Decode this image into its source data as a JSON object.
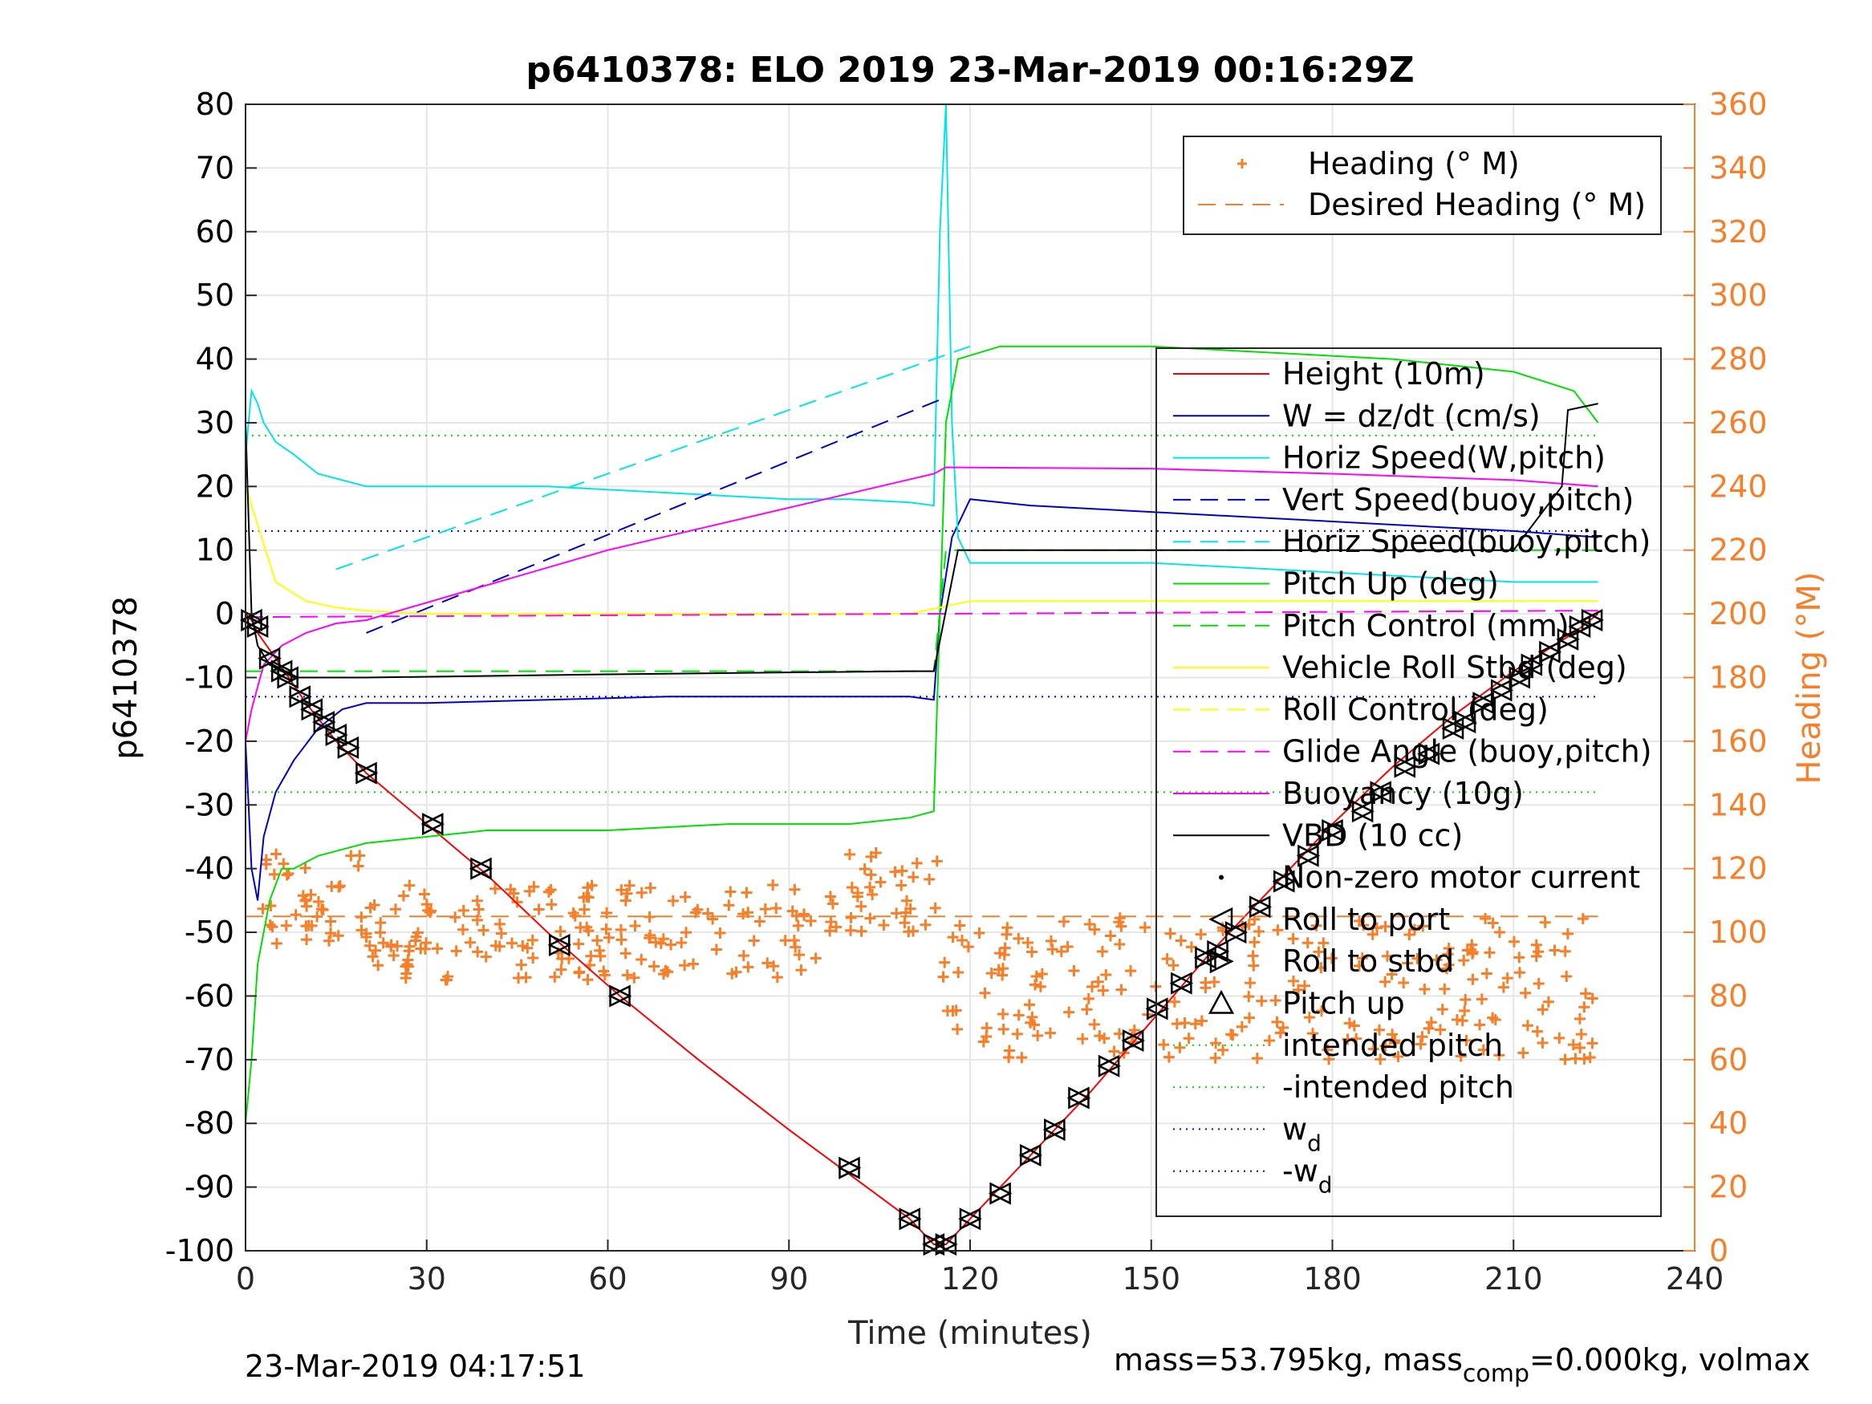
{
  "chart_data": {
    "type": "line",
    "title": "p6410378: ELO 2019 23-Mar-2019 00:16:29Z",
    "xlabel": "Time (minutes)",
    "ylabel_left": "p6410378",
    "ylabel_right": "Heading (°M)",
    "xlim": [
      0,
      240
    ],
    "ylim_left": [
      -100,
      80
    ],
    "ylim_right": [
      0,
      360
    ],
    "x_ticks": [
      "0",
      "30",
      "60",
      "90",
      "120",
      "150",
      "180",
      "210",
      "240"
    ],
    "y_ticks_left": [
      "80",
      "70",
      "60",
      "50",
      "40",
      "30",
      "20",
      "10",
      "0",
      "-10",
      "-20",
      "-30",
      "-40",
      "-50",
      "-60",
      "-70",
      "-80",
      "-90",
      "-100"
    ],
    "y_ticks_right": [
      "360",
      "340",
      "320",
      "300",
      "280",
      "260",
      "240",
      "220",
      "200",
      "180",
      "160",
      "140",
      "120",
      "100",
      "80",
      "60",
      "40",
      "20",
      "0"
    ],
    "grid": true,
    "colors": {
      "heading": "#f77f2a",
      "height": "#ff0000",
      "w": "#0000cc",
      "horiz": "#00e6e6",
      "pitch": "#00e000",
      "roll": "#ffff00",
      "glide": "#ff00ff",
      "vbd": "#000000",
      "wd": "#0000ff",
      "intended_pitch": "#00dd00"
    },
    "legend_heading": [
      {
        "label": "Heading (° M)",
        "style": "plus",
        "color": "#f77f2a"
      },
      {
        "label": "Desired Heading (° M)",
        "style": "dash",
        "color": "#f77f2a"
      }
    ],
    "legend_main": [
      {
        "label": "Height (10m)",
        "style": "solid",
        "color": "#ff0000"
      },
      {
        "label": "W = dz/dt (cm/s)",
        "style": "solid",
        "color": "#0000cc"
      },
      {
        "label": "Horiz Speed(W,pitch)",
        "style": "solid",
        "color": "#00e6e6"
      },
      {
        "label": "Vert Speed(buoy,pitch)",
        "style": "dash",
        "color": "#0000cc"
      },
      {
        "label": "Horiz Speed(buoy,pitch)",
        "style": "dash",
        "color": "#00e6e6"
      },
      {
        "label": "Pitch Up (deg)",
        "style": "solid",
        "color": "#00e000"
      },
      {
        "label": "Pitch Control (mm)",
        "style": "dash",
        "color": "#00e000"
      },
      {
        "label": "Vehicle Roll Stbd (deg)",
        "style": "solid",
        "color": "#ffff00"
      },
      {
        "label": "Roll Control (deg)",
        "style": "dash",
        "color": "#ffff00"
      },
      {
        "label": "Glide Angle (buoy,pitch)",
        "style": "dash",
        "color": "#ff00ff"
      },
      {
        "label": "Buoyancy (10g)",
        "style": "solid",
        "color": "#ff00ff"
      },
      {
        "label": "VBD (10 cc)",
        "style": "solid",
        "color": "#000000"
      },
      {
        "label": "Non-zero motor current",
        "style": "dot",
        "color": "#000000"
      },
      {
        "label": "Roll to port",
        "style": "triangle-left",
        "color": "#000000"
      },
      {
        "label": "Roll to stbd",
        "style": "triangle-right",
        "color": "#000000"
      },
      {
        "label": "Pitch up",
        "style": "triangle-up",
        "color": "#000000"
      },
      {
        "label": "intended pitch",
        "style": "dotted",
        "color": "#00dd00"
      },
      {
        "label": "-intended pitch",
        "style": "dotted",
        "color": "#00dd00"
      },
      {
        "label": "w",
        "sub": "d",
        "style": "dotted",
        "color": "#0000ff"
      },
      {
        "label": "-w",
        "sub": "d",
        "style": "dotted",
        "color": "#0000ff"
      }
    ],
    "series": [
      {
        "name": "Height (10m)",
        "color": "#ff0000",
        "x": [
          0,
          1,
          2,
          5,
          10,
          15,
          20,
          30,
          40,
          50,
          62,
          75,
          90,
          100,
          110,
          114,
          116,
          120,
          130,
          140,
          150,
          160,
          170,
          180,
          190,
          200,
          210,
          220,
          224
        ],
        "y": [
          0,
          -1,
          -3,
          -7,
          -14,
          -20,
          -25,
          -33,
          -41,
          -50,
          -60,
          -70,
          -81,
          -88,
          -95,
          -99,
          -99,
          -95,
          -85,
          -75,
          -64,
          -53,
          -43,
          -33,
          -24,
          -16,
          -9,
          -3,
          0
        ]
      },
      {
        "name": "W = dz/dt (cm/s)",
        "color": "#0000cc",
        "x": [
          0,
          1,
          2,
          3,
          5,
          8,
          12,
          16,
          20,
          30,
          50,
          70,
          90,
          100,
          110,
          114,
          115,
          117,
          120,
          130,
          150,
          170,
          190,
          210,
          224
        ],
        "y": [
          -20,
          -40,
          -45,
          -35,
          -28,
          -23,
          -18,
          -15,
          -14,
          -14,
          -13.5,
          -13,
          -13,
          -13,
          -13,
          -13.5,
          0,
          12,
          18,
          17,
          16,
          15,
          14,
          13,
          12
        ]
      },
      {
        "name": "Horiz Speed(W,pitch)",
        "color": "#00e6e6",
        "x": [
          0,
          1,
          2,
          3,
          5,
          8,
          12,
          16,
          20,
          30,
          50,
          70,
          90,
          100,
          110,
          114,
          115,
          116,
          117,
          118,
          120,
          130,
          150,
          170,
          190,
          210,
          224
        ],
        "y": [
          25,
          35,
          33,
          30,
          27,
          25,
          22,
          21,
          20,
          20,
          20,
          19,
          18,
          18,
          17.5,
          17,
          60,
          80,
          30,
          12,
          8,
          8,
          8,
          7,
          6,
          5,
          5
        ]
      },
      {
        "name": "Vert Speed(buoy,pitch)",
        "color": "#0000cc",
        "dash": true,
        "x": [
          20,
          116
        ],
        "y": [
          -3,
          34
        ]
      },
      {
        "name": "Horiz Speed(buoy,pitch)",
        "color": "#00e6e6",
        "dash": true,
        "x": [
          15,
          120
        ],
        "y": [
          7,
          42
        ]
      },
      {
        "name": "Pitch Up (deg)",
        "color": "#00e000",
        "x": [
          0,
          1,
          2,
          4,
          6,
          8,
          12,
          16,
          20,
          40,
          60,
          80,
          100,
          110,
          114,
          115,
          116,
          118,
          125,
          150,
          170,
          190,
          210,
          220,
          224
        ],
        "y": [
          -80,
          -70,
          -55,
          -45,
          -40,
          -40,
          -38,
          -37,
          -36,
          -34,
          -34,
          -33,
          -33,
          -32,
          -31,
          0,
          30,
          40,
          42,
          42,
          41,
          40,
          38,
          35,
          30
        ]
      },
      {
        "name": "Pitch Control (mm)",
        "color": "#00e000",
        "dash": true,
        "x": [
          0,
          114,
          116,
          224
        ],
        "y": [
          -9,
          -9,
          10,
          10
        ]
      },
      {
        "name": "Vehicle Roll Stbd (deg)",
        "color": "#ffff00",
        "x": [
          0,
          5,
          10,
          15,
          20,
          30,
          50,
          70,
          90,
          110,
          115,
          120,
          150,
          180,
          210,
          224
        ],
        "y": [
          20,
          5,
          2,
          1,
          0.5,
          0,
          0,
          0,
          0,
          0,
          1,
          2,
          2,
          2,
          2,
          2
        ]
      },
      {
        "name": "Glide Angle (buoy,pitch)",
        "color": "#ff00ff",
        "dash": true,
        "x": [
          0,
          224
        ],
        "y": [
          -0.5,
          0.5
        ]
      },
      {
        "name": "Buoyancy (10g)",
        "color": "#ff00ff",
        "x": [
          0,
          1,
          3,
          6,
          10,
          15,
          20,
          60,
          114,
          116,
          150,
          180,
          210,
          224
        ],
        "y": [
          -20,
          -15,
          -8,
          -5,
          -3,
          -1.5,
          -1,
          10,
          22,
          23,
          22.8,
          22,
          21,
          20
        ]
      },
      {
        "name": "VBD (10 cc)",
        "color": "#000000",
        "x": [
          0,
          1,
          2,
          4,
          8,
          20,
          60,
          110,
          114,
          118,
          120,
          210,
          218,
          219,
          224
        ],
        "y": [
          30,
          0,
          -5,
          -8,
          -10,
          -10,
          -9.5,
          -9,
          -9,
          10,
          10,
          10,
          20,
          32,
          33
        ]
      },
      {
        "name": "Desired Heading (° M)",
        "axis": "right",
        "color": "#f77f2a",
        "dash": true,
        "x": [
          0,
          224
        ],
        "y": [
          105,
          105
        ]
      }
    ],
    "reference_lines": [
      {
        "name": "intended pitch",
        "y": 28,
        "color": "#00dd00"
      },
      {
        "name": "-intended pitch",
        "y": -28,
        "color": "#00dd00"
      },
      {
        "name": "w_d",
        "y": 13,
        "color": "#0000ff"
      },
      {
        "name": "-w_d",
        "y": -13,
        "color": "#0000ff"
      }
    ],
    "heading_scatter": {
      "axis": "right",
      "x_ranges": [
        [
          2,
          20,
          95,
          125
        ],
        [
          20,
          100,
          85,
          115
        ],
        [
          100,
          115,
          100,
          125
        ],
        [
          115,
          224,
          60,
          105
        ]
      ]
    },
    "marker_points": {
      "x": [
        1,
        2,
        4,
        6,
        7,
        9,
        11,
        13,
        15,
        17,
        20,
        31,
        39,
        52,
        62,
        100,
        110,
        114,
        116,
        120,
        125,
        130,
        134,
        138,
        143,
        147,
        151,
        155,
        159,
        161,
        164,
        168,
        172,
        176,
        180,
        185,
        188,
        192,
        196,
        200,
        202,
        205,
        208,
        211,
        213,
        216,
        219,
        221,
        223
      ],
      "y": [
        -1,
        -2,
        -7,
        -9,
        -10,
        -13,
        -15,
        -17,
        -19,
        -21,
        -25,
        -33,
        -40,
        -52,
        -60,
        -87,
        -95,
        -99,
        -99,
        -95,
        -91,
        -85,
        -81,
        -76,
        -71,
        -67,
        -62,
        -58,
        -54,
        -53,
        -50,
        -46,
        -42,
        -38,
        -34,
        -31,
        -28,
        -24,
        -22,
        -18,
        -17,
        -14,
        -12,
        -10,
        -8,
        -6,
        -4,
        -2,
        -1
      ]
    }
  },
  "footer": {
    "timestamp": "23-Mar-2019 04:17:51",
    "mass_text_a": "mass=53.795kg, mass",
    "mass_sub": "comp",
    "mass_text_b": "=0.000kg, volmax"
  }
}
